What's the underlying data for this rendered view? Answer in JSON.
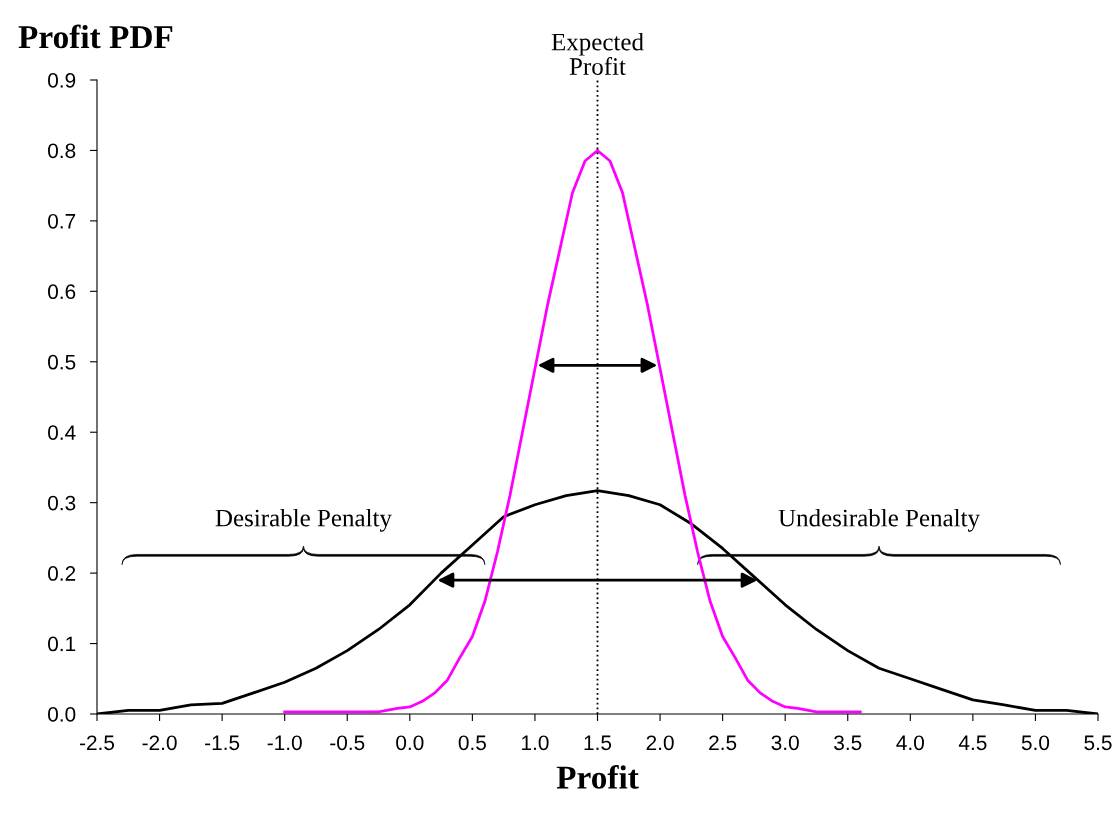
{
  "chart_data": {
    "type": "line",
    "ylabel": "Profit PDF",
    "xlabel": "Profit",
    "xlim": [
      -2.5,
      5.5
    ],
    "xticks": [
      -2.5,
      {
        "value": -2,
        "label": "-2.0"
      },
      -1.5,
      {
        "value": -1,
        "label": "-1.0"
      },
      -0.5,
      {
        "value": 0,
        "label": "0.0"
      },
      0.5,
      {
        "value": 1,
        "label": "1.0"
      },
      1.5,
      {
        "value": 2,
        "label": "2.0"
      },
      2.5,
      {
        "value": 3,
        "label": "3.0"
      },
      3.5,
      {
        "value": 4,
        "label": "4.0"
      },
      4.5,
      {
        "value": 5,
        "label": "5.0"
      },
      5.5
    ],
    "ylim": [
      0,
      0.9
    ],
    "yticks": [
      {
        "value": 0,
        "label": "0.0"
      },
      0.1,
      0.2,
      0.3,
      0.4,
      0.5,
      0.6,
      0.7,
      0.8,
      0.9
    ],
    "grid": false,
    "legend": false,
    "marker": "none",
    "line_style": "solid",
    "series": [
      {
        "color": "#000000",
        "x": [
          -2.5,
          -2.25,
          -2.0,
          -1.75,
          -1.5,
          -1.25,
          -1.0,
          -0.75,
          -0.5,
          -0.25,
          0,
          0.25,
          0.5,
          0.75,
          1.0,
          1.25,
          1.5,
          1.75,
          2.0,
          2.25,
          2.5,
          2.75,
          3.0,
          3.25,
          3.5,
          3.75,
          4.0,
          4.25,
          4.5,
          4.75,
          5.0,
          5.25,
          5.5
        ],
        "values": [
          0,
          0.005,
          0.005,
          0.013,
          0.015,
          0.03,
          0.045,
          0.065,
          0.09,
          0.12,
          0.155,
          0.2,
          0.24,
          0.28,
          0.297,
          0.31,
          0.317,
          0.31,
          0.297,
          0.27,
          0.235,
          0.195,
          0.155,
          0.12,
          0.09,
          0.065,
          0.05,
          0.035,
          0.02,
          0.013,
          0.005,
          0.005,
          0
        ]
      },
      {
        "color": "#ff00ff",
        "x": [
          -1.0,
          -0.25,
          -0.1,
          0,
          0.1,
          0.2,
          0.3,
          0.4,
          0.5,
          0.6,
          0.7,
          0.8,
          0.9,
          1.0,
          1.1,
          1.2,
          1.3,
          1.4,
          1.5,
          1.6,
          1.7,
          1.8,
          1.9,
          2.0,
          2.1,
          2.2,
          2.3,
          2.4,
          2.5,
          2.6,
          2.7,
          2.8,
          2.9,
          3.0,
          3.1,
          3.25,
          3.6
        ],
        "values": [
          0.003,
          0.003,
          0.008,
          0.01,
          0.018,
          0.03,
          0.048,
          0.08,
          0.11,
          0.16,
          0.23,
          0.31,
          0.4,
          0.49,
          0.58,
          0.66,
          0.74,
          0.785,
          0.8,
          0.785,
          0.74,
          0.66,
          0.58,
          0.49,
          0.4,
          0.31,
          0.23,
          0.16,
          0.11,
          0.08,
          0.048,
          0.03,
          0.018,
          0.01,
          0.008,
          0.003,
          0.003
        ]
      }
    ],
    "ref_lines": [
      {
        "axis": "x",
        "value": 1.5,
        "label": "Expected\nProfit",
        "color": "#000000",
        "line_style": "dotted"
      }
    ],
    "annotations": [
      "Desirable Penalty",
      "Undesirable Penalty"
    ]
  }
}
